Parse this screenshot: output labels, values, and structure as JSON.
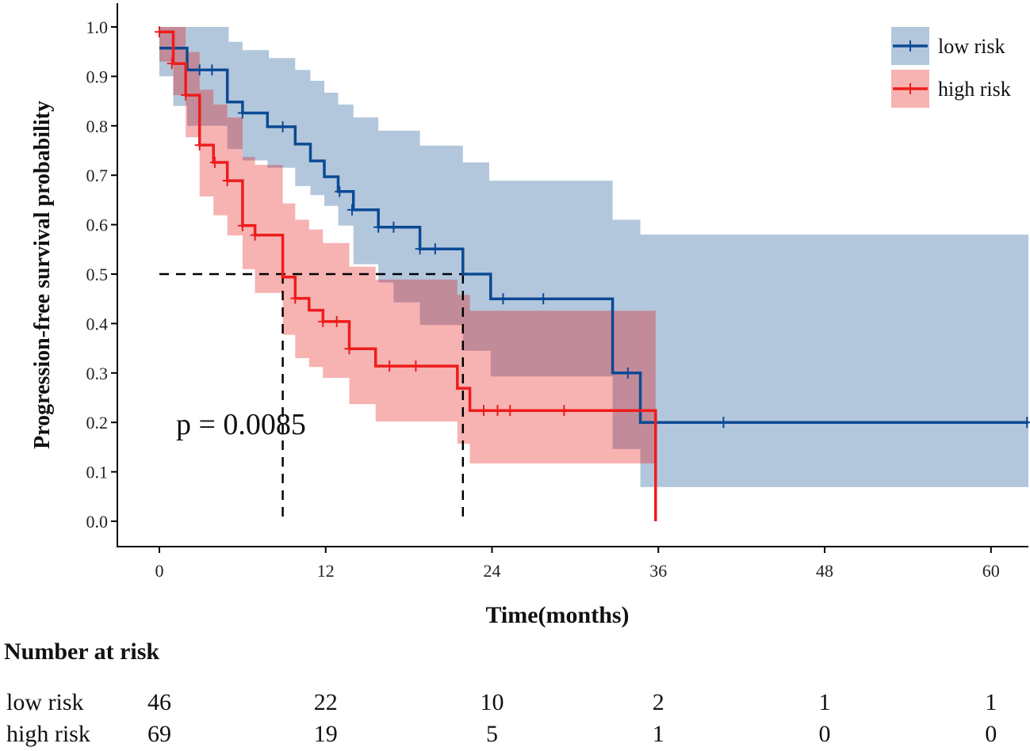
{
  "chart_data": {
    "type": "line",
    "subtype": "kaplan-meier",
    "title": "",
    "xlabel": "Time(months)",
    "ylabel": "Progression-free survival probability",
    "xlim": [
      0,
      62.7
    ],
    "ylim": [
      0,
      1.0
    ],
    "x_ticks": [
      "0",
      "12",
      "24",
      "36",
      "48",
      "60"
    ],
    "x_tick_values": [
      0,
      12,
      24,
      36,
      48,
      60
    ],
    "y_ticks": [
      "0.0",
      "0.1",
      "0.2",
      "0.3",
      "0.4",
      "0.5",
      "0.6",
      "0.7",
      "0.8",
      "0.9",
      "1.0"
    ],
    "y_tick_values": [
      0,
      0.1,
      0.2,
      0.3,
      0.4,
      0.5,
      0.6,
      0.7,
      0.8,
      0.9,
      1.0
    ],
    "grid": false,
    "legend_position": "top-right",
    "annotation": "p = 0.0085",
    "median_line": {
      "survival": 0.5,
      "medians": [
        8.9,
        21.9
      ]
    },
    "series": [
      {
        "name": "low risk",
        "color": "#0b4a94",
        "band_color": "#b3c7dc",
        "end": 62.7,
        "steps": [
          [
            0,
            0.957
          ],
          [
            2.0,
            0.913
          ],
          [
            4.9,
            0.848
          ],
          [
            6.0,
            0.826
          ],
          [
            7.8,
            0.798
          ],
          [
            9.8,
            0.763
          ],
          [
            10.9,
            0.729
          ],
          [
            11.9,
            0.697
          ],
          [
            12.9,
            0.667
          ],
          [
            14.0,
            0.63
          ],
          [
            15.8,
            0.595
          ],
          [
            18.8,
            0.551
          ],
          [
            21.9,
            0.5
          ],
          [
            23.9,
            0.45
          ],
          [
            32.7,
            0.3
          ],
          [
            34.7,
            0.2
          ]
        ],
        "upper": [
          [
            0,
            1.0
          ],
          [
            5.0,
            0.97
          ],
          [
            6.0,
            0.953
          ],
          [
            7.9,
            0.937
          ],
          [
            9.8,
            0.913
          ],
          [
            10.9,
            0.891
          ],
          [
            11.9,
            0.867
          ],
          [
            12.9,
            0.843
          ],
          [
            14.0,
            0.817
          ],
          [
            15.8,
            0.79
          ],
          [
            18.8,
            0.76
          ],
          [
            21.9,
            0.726
          ],
          [
            23.8,
            0.689
          ],
          [
            32.7,
            0.61
          ],
          [
            34.7,
            0.58
          ]
        ],
        "lower": [
          [
            0,
            0.9
          ],
          [
            1.0,
            0.84
          ],
          [
            2.0,
            0.8
          ],
          [
            4.9,
            0.753
          ],
          [
            6.0,
            0.73
          ],
          [
            7.8,
            0.715
          ],
          [
            9.8,
            0.678
          ],
          [
            10.9,
            0.66
          ],
          [
            11.9,
            0.638
          ],
          [
            12.9,
            0.598
          ],
          [
            14.0,
            0.52
          ],
          [
            15.8,
            0.483
          ],
          [
            16.9,
            0.443
          ],
          [
            18.8,
            0.397
          ],
          [
            21.9,
            0.345
          ],
          [
            23.9,
            0.293
          ],
          [
            32.7,
            0.146
          ],
          [
            34.7,
            0.069
          ]
        ],
        "censors": [
          [
            1.0,
            0.957
          ],
          [
            2.9,
            0.913
          ],
          [
            3.8,
            0.913
          ],
          [
            6.0,
            0.826
          ],
          [
            8.9,
            0.798
          ],
          [
            13.0,
            0.667
          ],
          [
            13.9,
            0.63
          ],
          [
            15.8,
            0.595
          ],
          [
            16.9,
            0.595
          ],
          [
            18.8,
            0.551
          ],
          [
            19.9,
            0.551
          ],
          [
            24.8,
            0.45
          ],
          [
            27.7,
            0.45
          ],
          [
            33.8,
            0.3
          ],
          [
            40.7,
            0.2
          ],
          [
            62.6,
            0.2
          ]
        ]
      },
      {
        "name": "high risk",
        "color": "#ee1c1c",
        "band_color": "#e50000",
        "end": 35.8,
        "steps": [
          [
            0,
            0.99
          ],
          [
            1.0,
            0.926
          ],
          [
            1.9,
            0.862
          ],
          [
            2.9,
            0.761
          ],
          [
            3.9,
            0.726
          ],
          [
            4.9,
            0.689
          ],
          [
            6.0,
            0.598
          ],
          [
            6.9,
            0.579
          ],
          [
            8.9,
            0.494
          ],
          [
            9.8,
            0.451
          ],
          [
            10.8,
            0.427
          ],
          [
            11.8,
            0.404
          ],
          [
            13.7,
            0.349
          ],
          [
            15.6,
            0.314
          ],
          [
            21.5,
            0.269
          ],
          [
            22.4,
            0.224
          ],
          [
            35.8,
            0.0
          ]
        ],
        "upper": [
          [
            0,
            1.0
          ],
          [
            1.9,
            0.949
          ],
          [
            2.9,
            0.873
          ],
          [
            3.9,
            0.843
          ],
          [
            4.9,
            0.817
          ],
          [
            6.0,
            0.737
          ],
          [
            6.9,
            0.721
          ],
          [
            8.9,
            0.643
          ],
          [
            9.8,
            0.61
          ],
          [
            10.8,
            0.59
          ],
          [
            11.8,
            0.563
          ],
          [
            13.7,
            0.515
          ],
          [
            15.6,
            0.489
          ],
          [
            21.5,
            0.458
          ],
          [
            22.4,
            0.426
          ]
        ],
        "lower": [
          [
            0,
            0.93
          ],
          [
            1.0,
            0.862
          ],
          [
            1.9,
            0.777
          ],
          [
            2.9,
            0.657
          ],
          [
            3.9,
            0.619
          ],
          [
            4.9,
            0.578
          ],
          [
            6.0,
            0.51
          ],
          [
            6.9,
            0.462
          ],
          [
            8.9,
            0.377
          ],
          [
            9.8,
            0.33
          ],
          [
            10.8,
            0.312
          ],
          [
            11.8,
            0.29
          ],
          [
            13.7,
            0.237
          ],
          [
            15.6,
            0.202
          ],
          [
            21.5,
            0.157
          ],
          [
            22.4,
            0.117
          ]
        ],
        "censors": [
          [
            0,
            0.99
          ],
          [
            0.9,
            0.926
          ],
          [
            1.9,
            0.862
          ],
          [
            2.9,
            0.761
          ],
          [
            4.0,
            0.726
          ],
          [
            4.9,
            0.689
          ],
          [
            6.0,
            0.598
          ],
          [
            6.9,
            0.579
          ],
          [
            9.8,
            0.451
          ],
          [
            11.8,
            0.404
          ],
          [
            12.8,
            0.404
          ],
          [
            13.7,
            0.349
          ],
          [
            16.6,
            0.314
          ],
          [
            18.5,
            0.314
          ],
          [
            23.4,
            0.224
          ],
          [
            24.4,
            0.224
          ],
          [
            25.3,
            0.224
          ],
          [
            29.2,
            0.224
          ]
        ]
      }
    ],
    "risk_table": {
      "title": "Number at risk",
      "times": [
        0,
        12,
        24,
        36,
        48,
        60
      ],
      "rows": [
        {
          "label": "low risk",
          "values": [
            "46",
            "22",
            "10",
            "2",
            "1",
            "1"
          ]
        },
        {
          "label": "high risk",
          "values": [
            "69",
            "19",
            "5",
            "1",
            "0",
            "0"
          ]
        }
      ]
    }
  }
}
